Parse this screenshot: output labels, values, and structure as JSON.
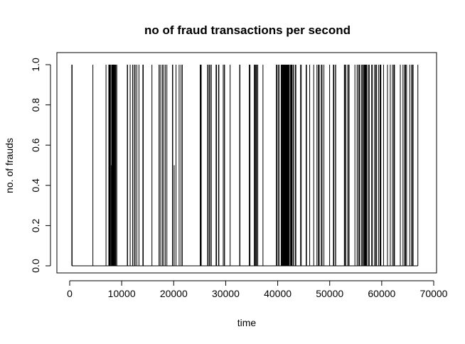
{
  "chart_data": {
    "type": "line",
    "title": "no of fraud transactions per second",
    "xlabel": "time",
    "ylabel": "no. of frauds",
    "xlim": [
      0,
      70000
    ],
    "ylim": [
      0,
      1
    ],
    "x_ticks": [
      "0",
      "10000",
      "20000",
      "30000",
      "40000",
      "50000",
      "60000",
      "70000"
    ],
    "x_tick_values": [
      0,
      10000,
      20000,
      30000,
      40000,
      50000,
      60000,
      70000
    ],
    "y_ticks": [
      "0.0",
      "0.2",
      "0.4",
      "0.6",
      "0.8",
      "1.0"
    ],
    "y_tick_values": [
      0,
      0.2,
      0.4,
      0.6,
      0.8,
      1.0
    ],
    "grid": false,
    "series": [
      {
        "spikes_full": [
          406,
          472,
          4462,
          6986,
          7519,
          7526,
          7535,
          7543,
          7551,
          7610,
          7672,
          7740,
          7891,
          8090,
          8169,
          8217,
          8296,
          8310,
          8330,
          8378,
          8408,
          8415,
          8451,
          8528,
          8614,
          8757,
          8808,
          8878,
          9064,
          11080,
          11092,
          11131,
          11629,
          12093,
          12095,
          12393,
          12597,
          12916,
          13323,
          14073,
          14152,
          15817,
          17187,
          17220,
          17230,
          17520,
          17838,
          18088,
          18399,
          18690,
          19820,
          19762,
          20451,
          21046,
          21419,
          21662,
          25095,
          25198,
          25254,
          25287,
          26523,
          26585,
          26833,
          26899,
          27163,
          27219,
          28143,
          28242,
          28625,
          28692,
          29526,
          29531,
          29753,
          29785,
          30852,
          32686,
          32745,
          34521,
          34684,
          35484,
          35585,
          35771,
          35866,
          35926,
          35942,
          35953,
          36170,
          37167,
          39729,
          39824,
          40086,
          40276,
          40662,
          40729,
          40742,
          40892,
          40918,
          40957,
          41071,
          41138,
          41164,
          41181,
          41194,
          41203,
          41233,
          41237,
          41243,
          41273,
          41285,
          41305,
          41313,
          41353,
          41397,
          41413,
          41505,
          41537,
          41549,
          41569,
          41576,
          41591,
          41600,
          41630,
          41675,
          41700,
          41745,
          41791,
          41833,
          41851,
          41870,
          41915,
          41928,
          41943,
          41968,
          41991,
          42007,
          42056,
          42104,
          42247,
          42474,
          42536,
          42606,
          42701,
          42766,
          42985,
          43028,
          43369,
          43494,
          44393,
          44532,
          45463,
          45541,
          46149,
          46925,
          47545,
          47826,
          47923,
          47982,
          48380,
          48533,
          48884,
          49985,
          50706,
          50808,
          51112,
          51155,
          52814,
          52934,
          53076,
          53451,
          53658,
          53727,
          54846,
          55279,
          55311,
          55614,
          55618,
          55760,
          56098,
          56328,
          56424,
          56624,
          56650,
          56703,
          56806,
          56887,
          57007,
          57027,
          57163,
          57470,
          57601,
          58067,
          58199,
          58642,
          58822,
          59011,
          59385,
          59669,
          59777,
          59840,
          60353,
          61108,
          61646,
          62080,
          62330,
          62341,
          62467,
          63578,
          64093,
          64412,
          64443,
          64585,
          64785,
          65385,
          65728,
          65936,
          66037,
          66952
        ],
        "spikes_half": [
          8020,
          20100
        ]
      }
    ]
  }
}
